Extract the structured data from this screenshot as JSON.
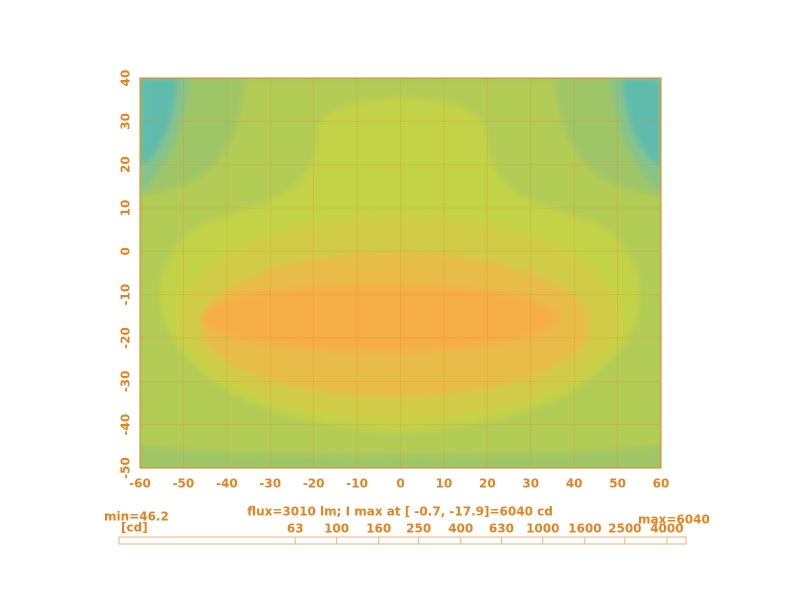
{
  "chart_data": {
    "type": "contour",
    "xlim": [
      -60,
      60
    ],
    "xticks": [
      -60,
      -50,
      -40,
      -30,
      -20,
      -10,
      0,
      10,
      20,
      30,
      40,
      50,
      60
    ],
    "ylim": [
      -50,
      40
    ],
    "yticks": [
      -50,
      -40,
      -30,
      -20,
      -10,
      0,
      10,
      20,
      30,
      40
    ],
    "grid": true,
    "color": "#e8821e",
    "min_label": "min=46.2",
    "max_label": "max=6040",
    "unit": "[cd]",
    "info": "flux=3010 lm; I max at [ -0.7, -17.9]=6040 cd",
    "colorbar": {
      "log": true,
      "lim": [
        8.8,
        4950
      ],
      "ticks": [
        63,
        100,
        160,
        250,
        400,
        630,
        1000,
        1600,
        2500,
        4000
      ]
    }
  }
}
